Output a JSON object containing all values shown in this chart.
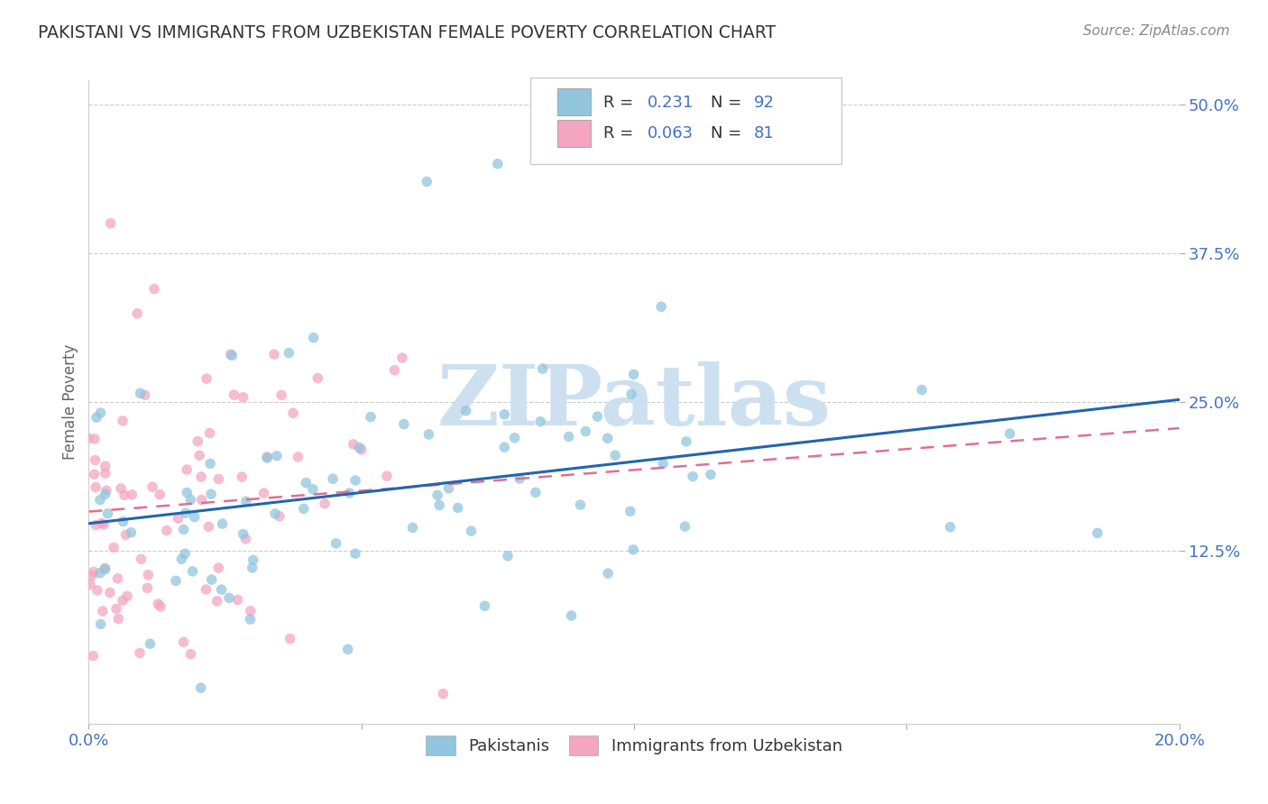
{
  "title": "PAKISTANI VS IMMIGRANTS FROM UZBEKISTAN FEMALE POVERTY CORRELATION CHART",
  "source": "Source: ZipAtlas.com",
  "xlim": [
    0.0,
    0.2
  ],
  "ylim": [
    -0.02,
    0.52
  ],
  "ytick_vals": [
    0.125,
    0.25,
    0.375,
    0.5
  ],
  "xtick_vals": [
    0.0,
    0.2
  ],
  "blue_color": "#92c5de",
  "pink_color": "#f4a6c0",
  "blue_line_color": "#2166ac",
  "pink_line_color": "#e07090",
  "legend_label_blue": "Pakistanis",
  "legend_label_pink": "Immigrants from Uzbekistan",
  "R_blue": 0.231,
  "N_blue": 92,
  "R_pink": 0.063,
  "N_pink": 81,
  "watermark": "ZIPatlas",
  "watermark_color": "#cce0f0",
  "grid_color": "#cccccc",
  "title_color": "#333333",
  "axis_label_color": "#666666",
  "tick_color": "#4472c4",
  "ylabel": "Female Poverty",
  "blue_intercept": 0.148,
  "blue_slope": 0.52,
  "pink_intercept": 0.158,
  "pink_slope": 0.35
}
